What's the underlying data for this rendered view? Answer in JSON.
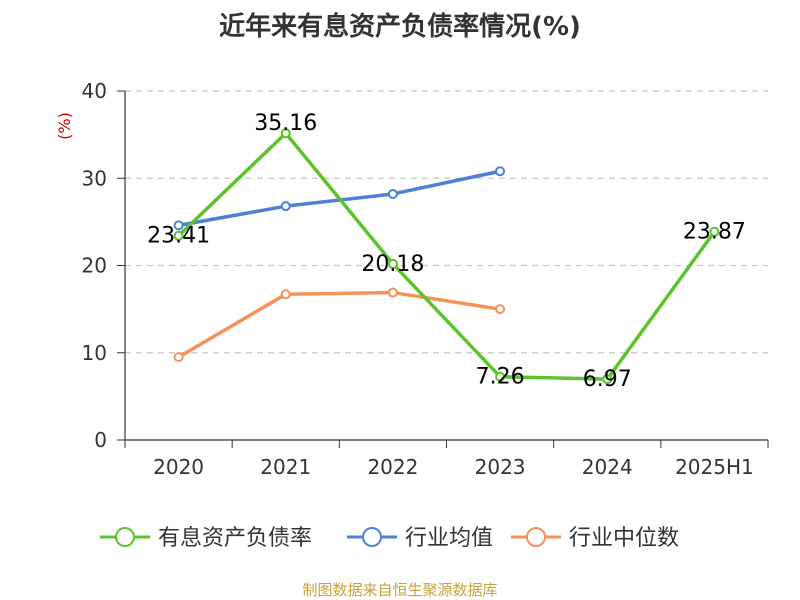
{
  "chart_data": {
    "type": "line",
    "title": "近年来有息资产负债率情况(%)",
    "ylabel": "(%)",
    "xlabel": "",
    "categories": [
      "2020",
      "2021",
      "2022",
      "2023",
      "2024",
      "2025H1"
    ],
    "ylim": [
      0,
      40
    ],
    "yticks": [
      0,
      10,
      20,
      30,
      40
    ],
    "grid": true,
    "legend_position": "bottom",
    "series": [
      {
        "name": "有息资产负债率",
        "color": "#5cc32a",
        "values": [
          23.41,
          35.16,
          20.18,
          7.26,
          6.97,
          23.87
        ],
        "labels": [
          "23.41",
          "35.16",
          "20.18",
          "7.26",
          "6.97",
          "23.87"
        ]
      },
      {
        "name": "行业均值",
        "color": "#4f80d8",
        "values": [
          24.6,
          26.8,
          28.2,
          30.8,
          null,
          null
        ]
      },
      {
        "name": "行业中位数",
        "color": "#f5915a",
        "values": [
          9.5,
          16.7,
          16.9,
          15.0,
          null,
          null
        ]
      }
    ],
    "source": "制图数据来自恒生聚源数据库"
  }
}
